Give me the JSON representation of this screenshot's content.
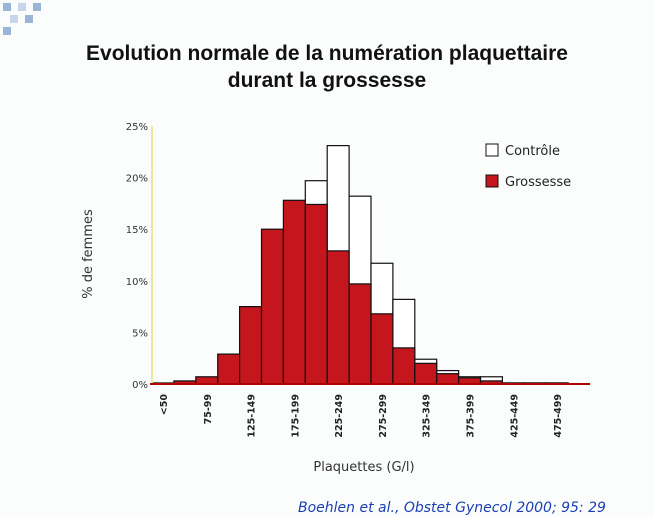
{
  "slide": {
    "title_line1": "Evolution normale de la numération plaquettaire",
    "title_line2": "durant la grossesse",
    "citation": "Boehlen et al., Obstet Gynecol 2000; 95: 29"
  },
  "colors": {
    "grossesse": "#c4161c",
    "controle": "#ffffff",
    "bar_stroke": "#111111",
    "axis": "#b00000",
    "y_axis_line": "#e8e8a0"
  },
  "chart_data": {
    "type": "bar",
    "title": "",
    "xlabel": "Plaquettes (G/l)",
    "ylabel": "% de femmes",
    "ylim": [
      0,
      25
    ],
    "y_ticks": [
      "0%",
      "5%",
      "10%",
      "15%",
      "20%",
      "25%"
    ],
    "x_tick_labels": [
      "<50",
      "75-99",
      "125-149",
      "175-199",
      "225-249",
      "275-299",
      "325-349",
      "375-399",
      "425-449",
      "475-499"
    ],
    "categories": [
      "<50",
      "50-74",
      "75-99",
      "100-124",
      "125-149",
      "150-174",
      "175-199",
      "200-224",
      "225-249",
      "250-274",
      "275-299",
      "300-324",
      "325-349",
      "350-374",
      "375-399",
      "400-424",
      "425-449",
      "450-474",
      "475-499",
      ">=500"
    ],
    "legend_position": "top-right",
    "series": [
      {
        "name": "Contrôle",
        "values": [
          0,
          0.1,
          0.2,
          0.4,
          0.7,
          3.4,
          8.5,
          19.7,
          23.1,
          18.2,
          11.7,
          8.2,
          2.4,
          1.3,
          0.7,
          0.7,
          0.1,
          0.1,
          0.1,
          0
        ]
      },
      {
        "name": "Grossesse",
        "values": [
          0.1,
          0.3,
          0.7,
          2.9,
          7.5,
          15.0,
          17.8,
          17.4,
          12.9,
          9.7,
          6.8,
          3.5,
          2.0,
          1.0,
          0.6,
          0.3,
          0.1,
          0.1,
          0.1,
          0
        ]
      }
    ]
  }
}
